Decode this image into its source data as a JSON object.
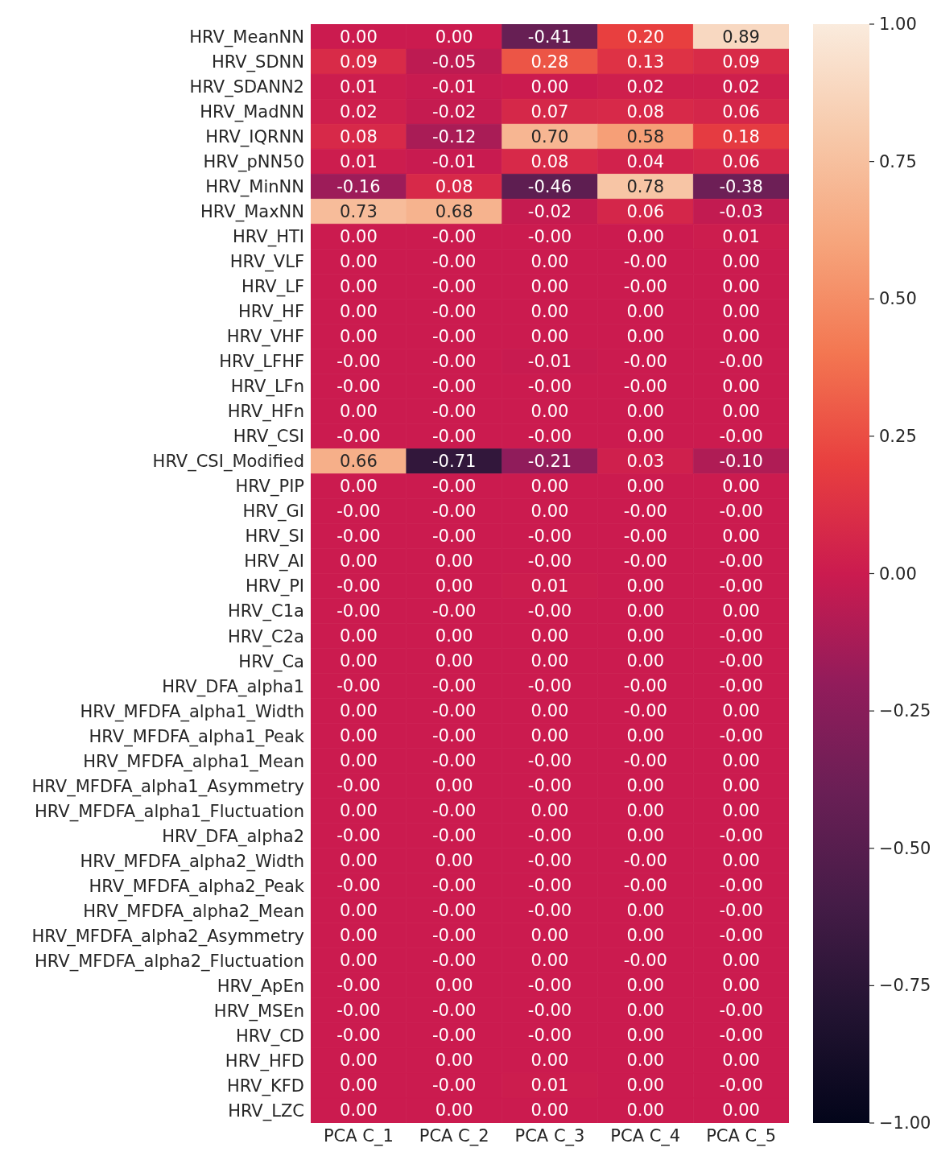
{
  "chart_data": {
    "type": "heatmap",
    "categories": [
      "PCA C_1",
      "PCA C_2",
      "PCA C_3",
      "PCA C_4",
      "PCA C_5"
    ],
    "y_categories": [
      "HRV_MeanNN",
      "HRV_SDNN",
      "HRV_SDANN2",
      "HRV_MadNN",
      "HRV_IQRNN",
      "HRV_pNN50",
      "HRV_MinNN",
      "HRV_MaxNN",
      "HRV_HTI",
      "HRV_VLF",
      "HRV_LF",
      "HRV_HF",
      "HRV_VHF",
      "HRV_LFHF",
      "HRV_LFn",
      "HRV_HFn",
      "HRV_CSI",
      "HRV_CSI_Modified",
      "HRV_PIP",
      "HRV_GI",
      "HRV_SI",
      "HRV_AI",
      "HRV_PI",
      "HRV_C1a",
      "HRV_C2a",
      "HRV_Ca",
      "HRV_DFA_alpha1",
      "HRV_MFDFA_alpha1_Width",
      "HRV_MFDFA_alpha1_Peak",
      "HRV_MFDFA_alpha1_Mean",
      "HRV_MFDFA_alpha1_Asymmetry",
      "HRV_MFDFA_alpha1_Fluctuation",
      "HRV_DFA_alpha2",
      "HRV_MFDFA_alpha2_Width",
      "HRV_MFDFA_alpha2_Peak",
      "HRV_MFDFA_alpha2_Mean",
      "HRV_MFDFA_alpha2_Asymmetry",
      "HRV_MFDFA_alpha2_Fluctuation",
      "HRV_ApEn",
      "HRV_MSEn",
      "HRV_CD",
      "HRV_HFD",
      "HRV_KFD",
      "HRV_LZC"
    ],
    "cells": [
      [
        0,
        0,
        -0.41,
        0.2,
        0.89
      ],
      [
        0.09,
        -0.05,
        0.28,
        0.13,
        0.09
      ],
      [
        0.01,
        -0.01,
        0,
        0.02,
        0.02
      ],
      [
        0.02,
        -0.02,
        0.07,
        0.08,
        0.06
      ],
      [
        0.08,
        -0.12,
        0.7,
        0.58,
        0.18
      ],
      [
        0.01,
        -0.01,
        0.08,
        0.04,
        0.06
      ],
      [
        -0.16,
        0.08,
        -0.46,
        0.78,
        -0.38
      ],
      [
        0.73,
        0.68,
        -0.02,
        0.06,
        -0.03
      ],
      [
        0,
        0,
        0,
        0,
        0.01
      ],
      [
        0,
        0,
        0,
        0,
        0
      ],
      [
        0,
        0,
        0,
        0,
        0
      ],
      [
        0,
        0,
        0,
        0,
        0
      ],
      [
        0,
        0,
        0,
        0,
        0
      ],
      [
        0,
        0,
        -0.01,
        0,
        0
      ],
      [
        0,
        0,
        0,
        0,
        0
      ],
      [
        0,
        0,
        0,
        0,
        0
      ],
      [
        0,
        0,
        0,
        0,
        0
      ],
      [
        0.66,
        -0.71,
        -0.21,
        0.03,
        -0.1
      ],
      [
        0,
        0,
        0,
        0,
        0
      ],
      [
        0,
        0,
        0,
        0,
        0
      ],
      [
        0,
        0,
        0,
        0,
        0
      ],
      [
        0,
        0,
        0,
        0,
        0
      ],
      [
        0,
        0,
        0.01,
        0,
        0
      ],
      [
        0,
        0,
        0,
        0,
        0
      ],
      [
        0,
        0,
        0,
        0,
        0
      ],
      [
        0,
        0,
        0,
        0,
        0
      ],
      [
        0,
        0,
        0,
        0,
        0
      ],
      [
        0,
        0,
        0,
        0,
        0
      ],
      [
        0,
        0,
        0,
        0,
        0
      ],
      [
        0,
        0,
        0,
        0,
        0
      ],
      [
        0,
        0,
        0,
        0,
        0
      ],
      [
        0,
        0,
        0,
        0,
        0
      ],
      [
        0,
        0,
        0,
        0,
        0
      ],
      [
        0,
        0,
        0,
        0,
        0
      ],
      [
        0,
        0,
        0,
        0,
        0
      ],
      [
        0,
        0,
        0,
        0,
        0
      ],
      [
        0,
        0,
        0,
        0,
        0
      ],
      [
        0,
        0,
        0,
        0,
        0
      ],
      [
        0,
        0,
        0,
        0,
        0
      ],
      [
        0,
        0,
        0,
        0,
        0
      ],
      [
        0,
        0,
        0,
        0,
        0
      ],
      [
        0,
        0,
        0,
        0,
        0
      ],
      [
        0,
        0,
        0.01,
        0,
        0
      ],
      [
        0,
        0,
        0,
        0,
        0
      ]
    ],
    "cell_labels": [
      [
        "0.00",
        "0.00",
        "-0.41",
        "0.20",
        "0.89"
      ],
      [
        "0.09",
        "-0.05",
        "0.28",
        "0.13",
        "0.09"
      ],
      [
        "0.01",
        "-0.01",
        "0.00",
        "0.02",
        "0.02"
      ],
      [
        "0.02",
        "-0.02",
        "0.07",
        "0.08",
        "0.06"
      ],
      [
        "0.08",
        "-0.12",
        "0.70",
        "0.58",
        "0.18"
      ],
      [
        "0.01",
        "-0.01",
        "0.08",
        "0.04",
        "0.06"
      ],
      [
        "-0.16",
        "0.08",
        "-0.46",
        "0.78",
        "-0.38"
      ],
      [
        "0.73",
        "0.68",
        "-0.02",
        "0.06",
        "-0.03"
      ],
      [
        "0.00",
        "-0.00",
        "-0.00",
        "0.00",
        "0.01"
      ],
      [
        "0.00",
        "-0.00",
        "0.00",
        "-0.00",
        "0.00"
      ],
      [
        "0.00",
        "-0.00",
        "0.00",
        "-0.00",
        "0.00"
      ],
      [
        "0.00",
        "-0.00",
        "0.00",
        "0.00",
        "0.00"
      ],
      [
        "0.00",
        "-0.00",
        "0.00",
        "0.00",
        "0.00"
      ],
      [
        "-0.00",
        "-0.00",
        "-0.01",
        "-0.00",
        "-0.00"
      ],
      [
        "-0.00",
        "-0.00",
        "-0.00",
        "-0.00",
        "0.00"
      ],
      [
        "0.00",
        "-0.00",
        "0.00",
        "0.00",
        "0.00"
      ],
      [
        "-0.00",
        "-0.00",
        "-0.00",
        "0.00",
        "-0.00"
      ],
      [
        "0.66",
        "-0.71",
        "-0.21",
        "0.03",
        "-0.10"
      ],
      [
        "0.00",
        "-0.00",
        "0.00",
        "0.00",
        "0.00"
      ],
      [
        "-0.00",
        "-0.00",
        "0.00",
        "-0.00",
        "-0.00"
      ],
      [
        "-0.00",
        "-0.00",
        "-0.00",
        "-0.00",
        "0.00"
      ],
      [
        "0.00",
        "0.00",
        "-0.00",
        "-0.00",
        "-0.00"
      ],
      [
        "-0.00",
        "0.00",
        "0.01",
        "0.00",
        "-0.00"
      ],
      [
        "-0.00",
        "-0.00",
        "-0.00",
        "0.00",
        "0.00"
      ],
      [
        "0.00",
        "0.00",
        "0.00",
        "0.00",
        "-0.00"
      ],
      [
        "0.00",
        "0.00",
        "0.00",
        "0.00",
        "-0.00"
      ],
      [
        "-0.00",
        "-0.00",
        "-0.00",
        "-0.00",
        "-0.00"
      ],
      [
        "0.00",
        "-0.00",
        "0.00",
        "-0.00",
        "0.00"
      ],
      [
        "0.00",
        "-0.00",
        "0.00",
        "0.00",
        "-0.00"
      ],
      [
        "0.00",
        "-0.00",
        "-0.00",
        "-0.00",
        "0.00"
      ],
      [
        "-0.00",
        "0.00",
        "-0.00",
        "0.00",
        "0.00"
      ],
      [
        "0.00",
        "-0.00",
        "0.00",
        "0.00",
        "0.00"
      ],
      [
        "-0.00",
        "-0.00",
        "-0.00",
        "0.00",
        "-0.00"
      ],
      [
        "0.00",
        "0.00",
        "-0.00",
        "-0.00",
        "0.00"
      ],
      [
        "-0.00",
        "-0.00",
        "-0.00",
        "-0.00",
        "-0.00"
      ],
      [
        "0.00",
        "-0.00",
        "-0.00",
        "0.00",
        "-0.00"
      ],
      [
        "0.00",
        "-0.00",
        "0.00",
        "0.00",
        "-0.00"
      ],
      [
        "0.00",
        "-0.00",
        "0.00",
        "-0.00",
        "0.00"
      ],
      [
        "-0.00",
        "0.00",
        "-0.00",
        "0.00",
        "0.00"
      ],
      [
        "-0.00",
        "-0.00",
        "-0.00",
        "0.00",
        "-0.00"
      ],
      [
        "-0.00",
        "-0.00",
        "-0.00",
        "0.00",
        "-0.00"
      ],
      [
        "0.00",
        "0.00",
        "0.00",
        "0.00",
        "0.00"
      ],
      [
        "0.00",
        "-0.00",
        "0.01",
        "0.00",
        "-0.00"
      ],
      [
        "0.00",
        "0.00",
        "0.00",
        "0.00",
        "0.00"
      ]
    ],
    "clim": [
      -1,
      1
    ],
    "cticks": [
      {
        "value": -1,
        "label": "−1.00"
      },
      {
        "value": -0.75,
        "label": "−0.75"
      },
      {
        "value": -0.5,
        "label": "−0.50"
      },
      {
        "value": -0.25,
        "label": "−0.25"
      },
      {
        "value": 0,
        "label": "0.00"
      },
      {
        "value": 0.25,
        "label": "0.25"
      },
      {
        "value": 0.5,
        "label": "0.50"
      },
      {
        "value": 0.75,
        "label": "0.75"
      },
      {
        "value": 1,
        "label": "1.00"
      }
    ]
  }
}
